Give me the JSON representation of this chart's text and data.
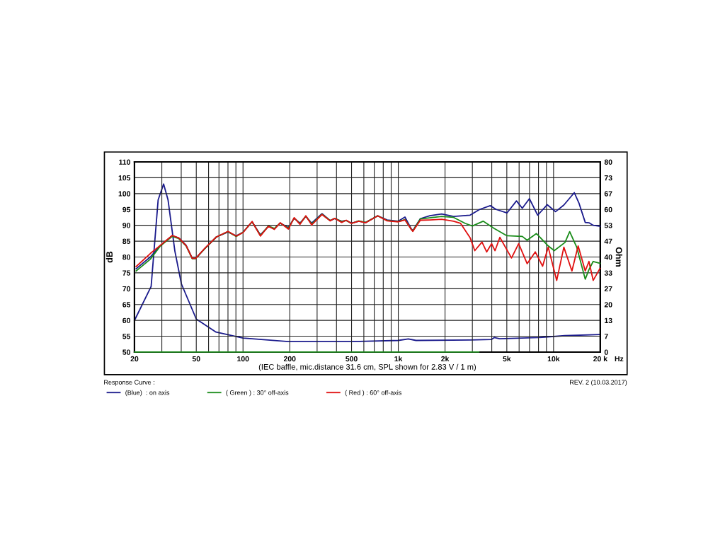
{
  "chart_data": {
    "type": "line",
    "log": "x",
    "grid": true,
    "legend": "bottom",
    "xlabel": "(IEC baffle, mic.distance 31.6 cm, SPL shown for 2.83 V / 1 m)",
    "ylabel": "dB",
    "y2label": "Ohm",
    "annotations": [
      "Response Curve :",
      "REV. 2 (10.03.2017)",
      "Hz"
    ],
    "xlim": [
      20,
      20000
    ],
    "ylim": [
      50,
      110
    ],
    "y2lim": [
      0,
      80
    ],
    "xticks": [
      20,
      {
        "value": 30,
        "label": null
      },
      {
        "value": 40,
        "label": null
      },
      50,
      {
        "value": 60,
        "label": null
      },
      {
        "value": 70,
        "label": null
      },
      {
        "value": 80,
        "label": null
      },
      {
        "value": 90,
        "label": null
      },
      100,
      200,
      {
        "value": 300,
        "label": null
      },
      {
        "value": 400,
        "label": null
      },
      500,
      {
        "value": 600,
        "label": null
      },
      {
        "value": 700,
        "label": null
      },
      {
        "value": 800,
        "label": null
      },
      {
        "value": 900,
        "label": null
      },
      {
        "value": 1000,
        "label": "1k"
      },
      {
        "value": 2000,
        "label": "2k"
      },
      {
        "value": 3000,
        "label": null
      },
      {
        "value": 4000,
        "label": null
      },
      {
        "value": 5000,
        "label": "5k"
      },
      {
        "value": 6000,
        "label": null
      },
      {
        "value": 7000,
        "label": null
      },
      {
        "value": 8000,
        "label": null
      },
      {
        "value": 9000,
        "label": null
      },
      {
        "value": 10000,
        "label": "10k"
      },
      {
        "value": 20000,
        "label": "20 k"
      }
    ],
    "yticks": [
      50,
      55,
      60,
      65,
      70,
      75,
      80,
      85,
      90,
      95,
      100,
      105,
      110
    ],
    "y2ticks": [
      0,
      {
        "value": 6.667,
        "label": "7"
      },
      {
        "value": 13.333,
        "label": "13"
      },
      20,
      {
        "value": 26.667,
        "label": "27"
      },
      {
        "value": 33.333,
        "label": "33"
      },
      40,
      {
        "value": 46.667,
        "label": "47"
      },
      {
        "value": 53.333,
        "label": "53"
      },
      60,
      {
        "value": 66.667,
        "label": "67"
      },
      {
        "value": 73.333,
        "label": "73"
      },
      80
    ],
    "series": [
      {
        "name": "(Blue)  : on axis",
        "color": "#1a1a8c",
        "x": [
          20.5,
          25.3,
          29.4,
          35,
          38.6,
          43,
          47.1,
          49.6,
          56.6,
          67.3,
          80,
          90.4,
          100,
          114.4,
          129.4,
          145.7,
          159.2,
          173.5,
          196,
          213.5,
          232.8,
          253.8,
          276.9,
          322.7,
          364,
          389.5,
          432,
          462.4,
          500,
          556,
          617,
          737,
          848,
          1000,
          1104,
          1205,
          1240,
          1387,
          1596,
          1902,
          2270,
          2900,
          3340,
          3910,
          4270,
          5010,
          5770,
          6290,
          6990,
          7900,
          9100,
          10300,
          11650,
          13600,
          14600,
          16000,
          16900,
          18000,
          19900
        ],
        "values": [
          76.3,
          80,
          83.7,
          86.7,
          86,
          83.7,
          79.6,
          79.6,
          82.6,
          86.3,
          87.9,
          86.7,
          87.8,
          91.1,
          87,
          89.6,
          88.9,
          90.7,
          89.3,
          92.2,
          90.7,
          92.8,
          90.7,
          93.7,
          91.5,
          92.1,
          91.3,
          91.5,
          90.7,
          91.3,
          90.9,
          93,
          91.7,
          91.3,
          92.6,
          89.1,
          88.3,
          92.1,
          93,
          93.6,
          92.8,
          93.2,
          95,
          96.2,
          95,
          93.9,
          97.7,
          95.4,
          98.4,
          93.2,
          96.5,
          94.3,
          96.4,
          100.3,
          96.9,
          90.9,
          90.8,
          90,
          89.7
        ]
      },
      {
        "name": "( Green ) : 30° off-axis",
        "color": "#1a8c1a",
        "x": [
          20.5,
          25.3,
          29.4,
          35,
          38.6,
          43,
          47.1,
          49.6,
          56.6,
          67.3,
          80,
          90.4,
          100,
          114.4,
          129.4,
          145.7,
          159.2,
          173.5,
          196,
          213.5,
          232.8,
          253.8,
          276.9,
          322.7,
          364,
          389.5,
          432,
          462.4,
          500,
          556,
          617,
          737,
          848,
          1000,
          1104,
          1205,
          1240,
          1387,
          1902,
          2270,
          2700,
          3000,
          3520,
          4120,
          5010,
          6290,
          6760,
          7760,
          9240,
          10100,
          11850,
          12700,
          14100,
          16000,
          16900,
          18000,
          19900
        ],
        "values": [
          75.6,
          79.3,
          83.5,
          86.5,
          85.8,
          83.5,
          79.5,
          79.5,
          82.6,
          86.3,
          88,
          86.5,
          87.8,
          91.1,
          86.8,
          89.8,
          89,
          90.7,
          89.1,
          92.3,
          90.5,
          92.9,
          90.4,
          93.5,
          91.5,
          92.2,
          91.2,
          91.5,
          90.6,
          91.4,
          90.9,
          93,
          91.5,
          91.2,
          91.8,
          88.9,
          88.2,
          92,
          92.8,
          92.5,
          90.6,
          89.8,
          91.3,
          89.1,
          86.7,
          86.5,
          85.3,
          87.4,
          83.5,
          82,
          84.6,
          88,
          83.1,
          73,
          76,
          78.6,
          78
        ]
      },
      {
        "name": "( Red ) : 60° off-axis",
        "color": "#e01010",
        "x": [
          20.5,
          25.3,
          29.4,
          35,
          38.6,
          43,
          47.1,
          49.6,
          56.6,
          67.3,
          80,
          90.4,
          100,
          114.4,
          129.4,
          145.7,
          159.2,
          173.5,
          196,
          213.5,
          232.8,
          253.8,
          276.9,
          322.7,
          364,
          389.5,
          432,
          462.4,
          500,
          556,
          617,
          737,
          848,
          1000,
          1104,
          1205,
          1240,
          1387,
          1596,
          1902,
          2270,
          2520,
          2900,
          3110,
          3460,
          3710,
          3990,
          4200,
          4510,
          5360,
          5960,
          6760,
          7630,
          8500,
          9240,
          10480,
          11650,
          13130,
          14400,
          16000,
          16900,
          18000,
          19900
        ],
        "values": [
          77,
          81.1,
          83.7,
          86.8,
          86,
          83.6,
          79.6,
          79.6,
          82.7,
          86.3,
          88.1,
          86.6,
          87.7,
          91.2,
          86.6,
          89.7,
          88.7,
          90.8,
          88.8,
          92.4,
          90.3,
          93,
          90.1,
          93.4,
          91.4,
          92.2,
          90.9,
          91.6,
          90.6,
          91.3,
          90.8,
          93,
          91.4,
          91.1,
          91.7,
          88.9,
          88.1,
          91.6,
          91.7,
          91.9,
          91.3,
          90.6,
          86.1,
          82,
          84.7,
          81.6,
          84.2,
          82,
          86.2,
          79.7,
          84.2,
          77.9,
          81.6,
          77.1,
          83.1,
          72.6,
          83.1,
          75.6,
          83.5,
          75.6,
          78.6,
          72.6,
          76.4
        ]
      },
      {
        "axis": "y2",
        "color": "#1a1a8c",
        "x": [
          20,
          25.6,
          28.4,
          30.8,
          32.9,
          36.4,
          40.1,
          50,
          67,
          100,
          196,
          500,
          1000,
          1160,
          1300,
          2900,
          3970,
          4150,
          4500,
          8000,
          11800,
          19900
        ],
        "values": [
          13.3,
          27.6,
          64,
          70.7,
          64,
          42.5,
          28.7,
          13.9,
          8.4,
          5.9,
          4.4,
          4.4,
          4.9,
          5.5,
          4.9,
          5.1,
          5.3,
          6.1,
          5.6,
          6.1,
          6.9,
          7.4
        ]
      },
      {
        "color": "#1a8c1a",
        "x": [
          20,
          3300
        ],
        "values": [
          50,
          50
        ]
      }
    ]
  }
}
